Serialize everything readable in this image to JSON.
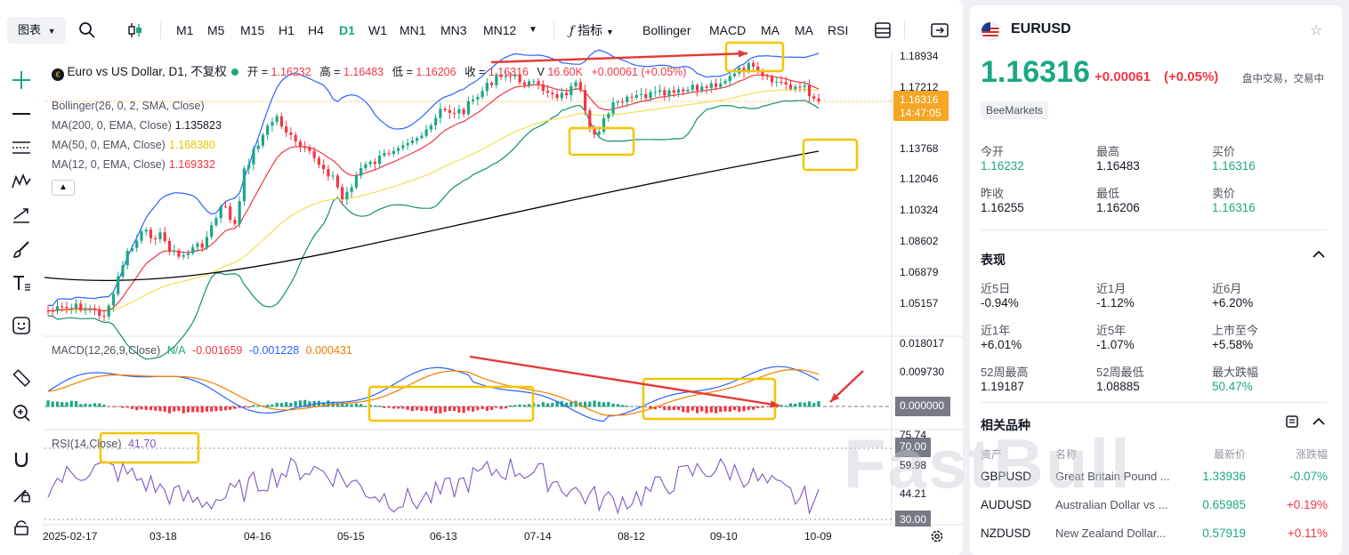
{
  "toolbar": {
    "chart_type": "图表",
    "timeframes": [
      "M1",
      "M5",
      "M15",
      "H1",
      "H4",
      "D1",
      "W1",
      "MN1",
      "MN3",
      "MN12"
    ],
    "active_timeframe": "D1",
    "indicators_label": "指标",
    "indicators": [
      "Bollinger",
      "MACD",
      "MA",
      "MA",
      "RSI"
    ]
  },
  "legend": {
    "title": "Euro vs US Dollar, D1, 不复权",
    "open_label": "开 =",
    "open": "1.16232",
    "high_label": "高 =",
    "high": "1.16483",
    "low_label": "低 =",
    "low": "1.16206",
    "close_label": "收 =",
    "close": "1.16316",
    "volume_label": "V",
    "volume": "16.60K",
    "change": "+0.00061 (+0.05%)",
    "bollinger": "Bollinger(26, 0, 2, SMA, Close)",
    "ma200_label": "MA(200, 0, EMA, Close)",
    "ma200": "1.135823",
    "ma50_label": "MA(50, 0, EMA, Close)",
    "ma50": "1.168380",
    "ma12_label": "MA(12, 0, EMA, Close)",
    "ma12": "1.169332",
    "macd_label": "MACD(12,26,9,Close)",
    "macd_na": "N/A",
    "macd_v1": "-0.001659",
    "macd_v2": "-0.001228",
    "macd_v3": "0.000431",
    "rsi_label": "RSI(14,Close)",
    "rsi_value": "41.70"
  },
  "price_axis": [
    "1.18934",
    "1.17212",
    "1.13768",
    "1.12046",
    "1.10324",
    "1.08602",
    "1.06879",
    "1.05157"
  ],
  "current_price": "1.16316",
  "countdown": "14:47:05",
  "macd_axis": [
    "0.018017",
    "0.009730",
    "0.000000"
  ],
  "rsi_axis": [
    "75.74",
    "70.00",
    "59.98",
    "44.21",
    "30.00"
  ],
  "x_axis": [
    "2025-02-17",
    "03-18",
    "04-16",
    "05-15",
    "06-13",
    "07-14",
    "08-12",
    "09-10",
    "10-09"
  ],
  "colors": {
    "up": "#1ba784",
    "down": "#f23645",
    "bb": "#2962ff",
    "ma200": "#000000",
    "ma50": "#f0e050",
    "ma12": "#f23645",
    "accent": "#f5a623",
    "annot": "#f5c400"
  },
  "symbol": {
    "name": "EURUSD",
    "price": "1.16316",
    "change": "+0.00061",
    "change_pct": "(+0.05%)",
    "status": "盘中交易，交易中",
    "broker": "BeeMarkets"
  },
  "quote": [
    {
      "label": "今开",
      "value": "1.16232",
      "color": "green"
    },
    {
      "label": "最高",
      "value": "1.16483",
      "color": ""
    },
    {
      "label": "买价",
      "value": "1.16316",
      "color": "green"
    },
    {
      "label": "昨收",
      "value": "1.16255",
      "color": ""
    },
    {
      "label": "最低",
      "value": "1.16206",
      "color": ""
    },
    {
      "label": "卖价",
      "value": "1.16316",
      "color": "green"
    }
  ],
  "performance_title": "表现",
  "performance": [
    {
      "label": "近5日",
      "value": "-0.94%",
      "color": ""
    },
    {
      "label": "近1月",
      "value": "-1.12%",
      "color": ""
    },
    {
      "label": "近6月",
      "value": "+6.20%",
      "color": ""
    },
    {
      "label": "近1年",
      "value": "+6.01%",
      "color": ""
    },
    {
      "label": "近5年",
      "value": "-1.07%",
      "color": ""
    },
    {
      "label": "上市至今",
      "value": "+5.58%",
      "color": ""
    },
    {
      "label": "52周最高",
      "value": "1.19187",
      "color": ""
    },
    {
      "label": "52周最低",
      "value": "1.08885",
      "color": ""
    },
    {
      "label": "最大跌幅",
      "value": "50.47%",
      "color": "green"
    }
  ],
  "related_title": "相关品种",
  "related_headers": [
    "资产",
    "名称",
    "最新价",
    "涨跌幅"
  ],
  "related": [
    {
      "asset": "GBPUSD",
      "name": "Great Britain Pound ...",
      "price": "1.33936",
      "change": "-0.07%",
      "color": "green"
    },
    {
      "asset": "AUDUSD",
      "name": "Australian Dollar vs ...",
      "price": "0.65985",
      "change": "+0.19%",
      "color": "red"
    },
    {
      "asset": "NZDUSD",
      "name": "New Zealand Dollar...",
      "price": "0.57919",
      "change": "+0.11%",
      "color": "red"
    }
  ],
  "watermark": "FastBull"
}
